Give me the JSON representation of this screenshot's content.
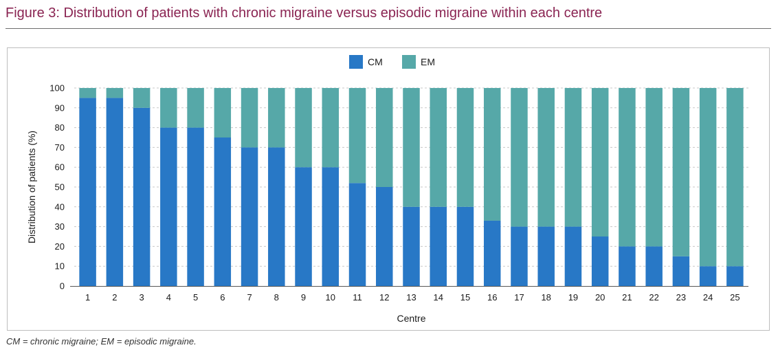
{
  "figure": {
    "title": "Figure 3: Distribution of patients with chronic migraine versus episodic migraine within each centre",
    "footnote": "CM = chronic migraine; EM = episodic migraine."
  },
  "colors": {
    "title": "#8a2452",
    "cm": "#2878c6",
    "em": "#56a8a8",
    "grid": "#c8c8c8"
  },
  "chart_data": {
    "type": "bar",
    "stacked": true,
    "title": "",
    "xlabel": "Centre",
    "ylabel": "Distribution of patients (%)",
    "ylim": [
      0,
      100
    ],
    "yticks": [
      0,
      10,
      20,
      30,
      40,
      50,
      60,
      70,
      80,
      90,
      100
    ],
    "grid": "horizontal dashed",
    "legend_position": "top-center",
    "categories": [
      "1",
      "2",
      "3",
      "4",
      "5",
      "6",
      "7",
      "8",
      "9",
      "10",
      "11",
      "12",
      "13",
      "14",
      "15",
      "16",
      "17",
      "18",
      "19",
      "20",
      "21",
      "22",
      "23",
      "24",
      "25"
    ],
    "series": [
      {
        "name": "CM",
        "color": "#2878c6",
        "values": [
          95,
          95,
          90,
          80,
          80,
          75,
          70,
          70,
          60,
          60,
          52,
          50,
          40,
          40,
          40,
          33,
          30,
          30,
          30,
          25,
          20,
          20,
          15,
          10,
          10
        ]
      },
      {
        "name": "EM",
        "color": "#56a8a8",
        "values": [
          5,
          5,
          10,
          20,
          20,
          25,
          30,
          30,
          40,
          40,
          48,
          50,
          60,
          60,
          60,
          67,
          70,
          70,
          70,
          75,
          80,
          80,
          85,
          90,
          90
        ]
      }
    ]
  }
}
